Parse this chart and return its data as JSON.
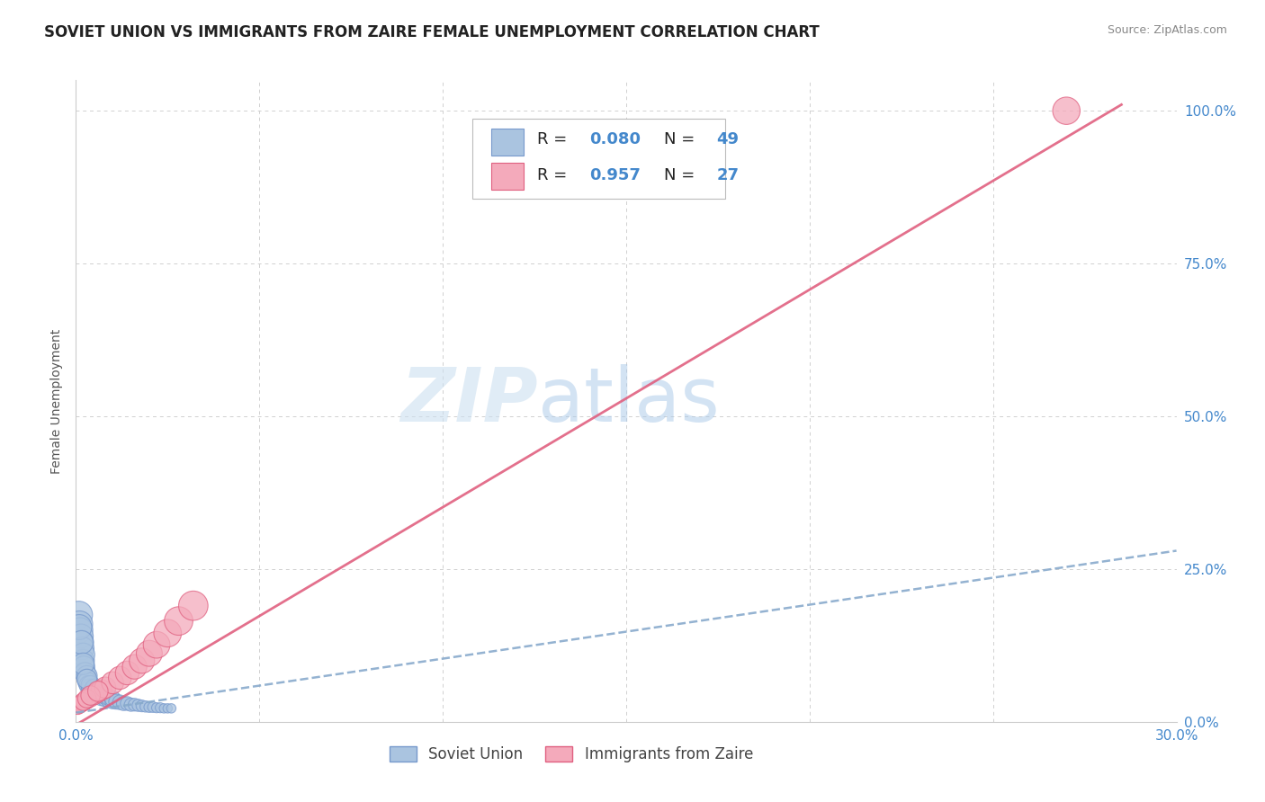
{
  "title": "SOVIET UNION VS IMMIGRANTS FROM ZAIRE FEMALE UNEMPLOYMENT CORRELATION CHART",
  "source_text": "Source: ZipAtlas.com",
  "ylabel": "Female Unemployment",
  "xlim": [
    0.0,
    0.3
  ],
  "ylim": [
    0.0,
    1.05
  ],
  "xticks": [
    0.0,
    0.05,
    0.1,
    0.15,
    0.2,
    0.25,
    0.3
  ],
  "xtick_labels": [
    "0.0%",
    "",
    "",
    "",
    "",
    "",
    "30.0%"
  ],
  "yticks": [
    0.0,
    0.25,
    0.5,
    0.75,
    1.0
  ],
  "ytick_labels": [
    "0.0%",
    "25.0%",
    "50.0%",
    "75.0%",
    "100.0%"
  ],
  "background_color": "#ffffff",
  "grid_color": "#cccccc",
  "legend_R1": "R = ",
  "legend_V1": "0.080",
  "legend_N1_label": "N = ",
  "legend_N1_val": "49",
  "legend_R2": "R = ",
  "legend_V2": "0.957",
  "legend_N2_label": "N = ",
  "legend_N2_val": "27",
  "soviet_color": "#aac4e0",
  "zaire_color": "#f4aabb",
  "soviet_edge_color": "#7799cc",
  "zaire_edge_color": "#e06080",
  "soviet_line_color": "#88aacc",
  "zaire_line_color": "#e06080",
  "tick_color": "#4488cc",
  "soviet_scatter_x": [
    0.0008,
    0.001,
    0.0012,
    0.0014,
    0.0016,
    0.0018,
    0.002,
    0.002,
    0.0022,
    0.0025,
    0.003,
    0.003,
    0.0032,
    0.0035,
    0.004,
    0.004,
    0.0045,
    0.005,
    0.005,
    0.006,
    0.006,
    0.007,
    0.007,
    0.008,
    0.008,
    0.009,
    0.009,
    0.01,
    0.01,
    0.011,
    0.012,
    0.013,
    0.014,
    0.015,
    0.016,
    0.017,
    0.018,
    0.019,
    0.02,
    0.021,
    0.022,
    0.023,
    0.024,
    0.025,
    0.026,
    0.0009,
    0.0015,
    0.002,
    0.003
  ],
  "soviet_scatter_y": [
    0.175,
    0.16,
    0.15,
    0.14,
    0.13,
    0.12,
    0.1,
    0.11,
    0.09,
    0.08,
    0.07,
    0.075,
    0.065,
    0.06,
    0.055,
    0.06,
    0.05,
    0.05,
    0.055,
    0.045,
    0.05,
    0.04,
    0.045,
    0.038,
    0.042,
    0.036,
    0.04,
    0.034,
    0.038,
    0.033,
    0.032,
    0.03,
    0.03,
    0.028,
    0.028,
    0.027,
    0.026,
    0.025,
    0.024,
    0.024,
    0.023,
    0.023,
    0.022,
    0.022,
    0.022,
    0.155,
    0.13,
    0.095,
    0.07
  ],
  "zaire_scatter_x": [
    0.0005,
    0.001,
    0.0015,
    0.002,
    0.0025,
    0.003,
    0.004,
    0.005,
    0.006,
    0.007,
    0.008,
    0.01,
    0.012,
    0.014,
    0.016,
    0.018,
    0.02,
    0.022,
    0.025,
    0.028,
    0.032,
    0.001,
    0.002,
    0.003,
    0.004,
    0.006,
    0.27
  ],
  "zaire_scatter_y": [
    0.025,
    0.028,
    0.03,
    0.032,
    0.034,
    0.036,
    0.04,
    0.044,
    0.048,
    0.052,
    0.056,
    0.064,
    0.072,
    0.08,
    0.09,
    0.1,
    0.112,
    0.126,
    0.145,
    0.165,
    0.19,
    0.028,
    0.033,
    0.038,
    0.043,
    0.05,
    1.0
  ],
  "soviet_sizes": [
    120,
    110,
    100,
    95,
    90,
    85,
    80,
    85,
    75,
    70,
    65,
    68,
    60,
    58,
    55,
    58,
    52,
    50,
    54,
    48,
    50,
    45,
    47,
    42,
    44,
    40,
    42,
    38,
    40,
    36,
    34,
    32,
    30,
    28,
    26,
    24,
    22,
    20,
    18,
    18,
    16,
    16,
    14,
    14,
    14,
    100,
    88,
    75,
    62
  ],
  "zaire_sizes": [
    40,
    44,
    46,
    48,
    50,
    52,
    56,
    60,
    64,
    68,
    72,
    78,
    84,
    90,
    96,
    102,
    108,
    114,
    122,
    130,
    138,
    44,
    50,
    55,
    60,
    66,
    120
  ],
  "soviet_line_x": [
    0.0,
    0.3
  ],
  "soviet_line_y": [
    0.015,
    0.28
  ],
  "zaire_line_x": [
    0.0,
    0.285
  ],
  "zaire_line_y": [
    -0.005,
    1.01
  ]
}
